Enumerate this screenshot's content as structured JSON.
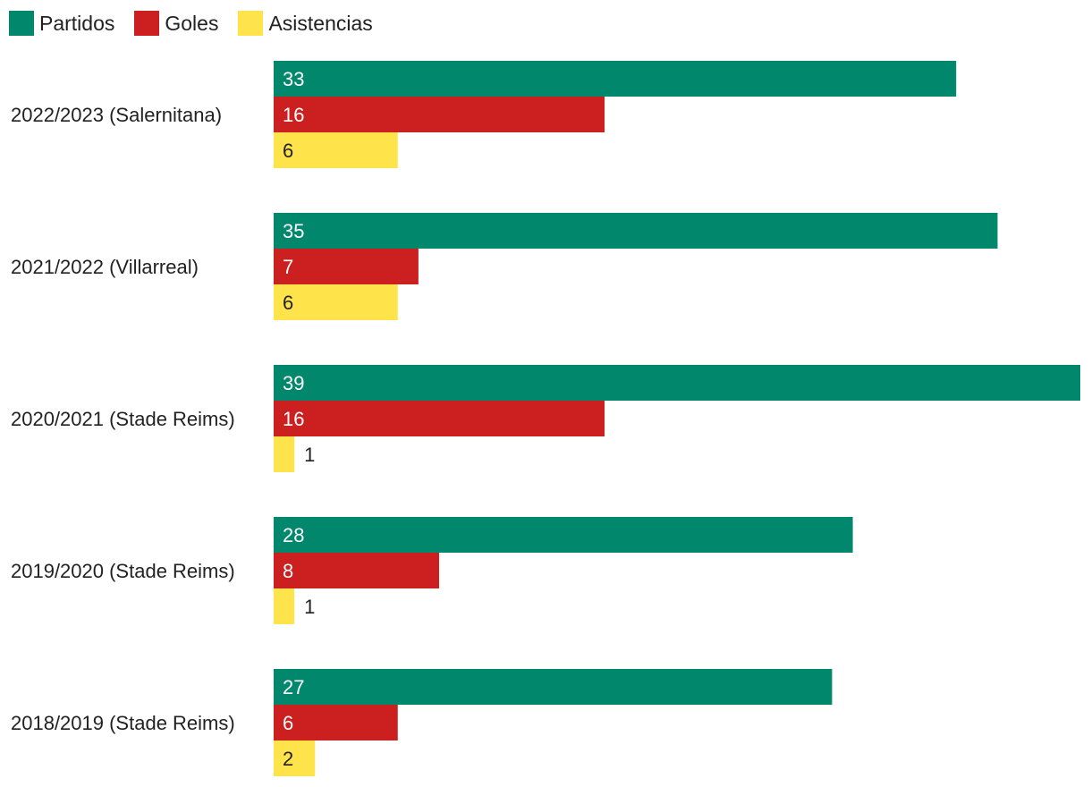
{
  "chart_data": {
    "type": "bar",
    "orientation": "horizontal",
    "title": "",
    "xlabel": "",
    "ylabel": "",
    "xlim": [
      0,
      39
    ],
    "grid": false,
    "legend_position": "top-left",
    "categories": [
      "2022/2023 (Salernitana)",
      "2021/2022 (Villarreal)",
      "2020/2021 (Stade Reims)",
      "2019/2020 (Stade Reims)",
      "2018/2019 (Stade Reims)"
    ],
    "series": [
      {
        "name": "Partidos",
        "color": "#00876c",
        "label_color": "#ffffff",
        "values": [
          33,
          35,
          39,
          28,
          27
        ]
      },
      {
        "name": "Goles",
        "color": "#cc1f1f",
        "label_color": "#ffffff",
        "values": [
          16,
          7,
          16,
          8,
          6
        ]
      },
      {
        "name": "Asistencias",
        "color": "#ffe34a",
        "label_color": "#222222",
        "values": [
          6,
          6,
          1,
          1,
          2
        ]
      }
    ]
  }
}
